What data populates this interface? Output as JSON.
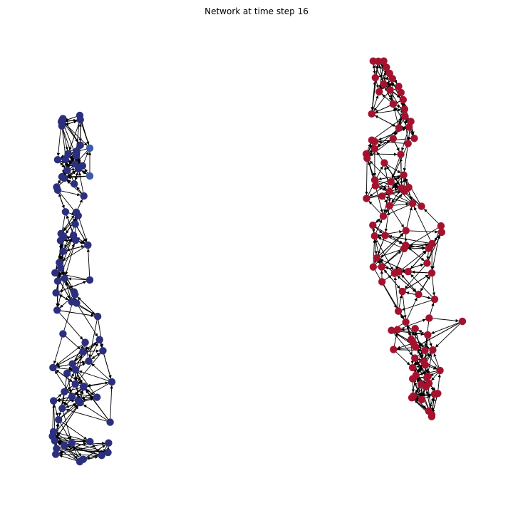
{
  "title": "Network at time step 16",
  "colors": {
    "background": "#ffffff",
    "edge": "#000000",
    "cluster_a_node": "#2b2f7e",
    "cluster_a_highlight": "#3c5ba8",
    "cluster_b_node": "#a5122e"
  },
  "clusters": [
    {
      "name": "",
      "node_count": 85
    },
    {
      "name": "",
      "node_count": 100
    }
  ]
}
